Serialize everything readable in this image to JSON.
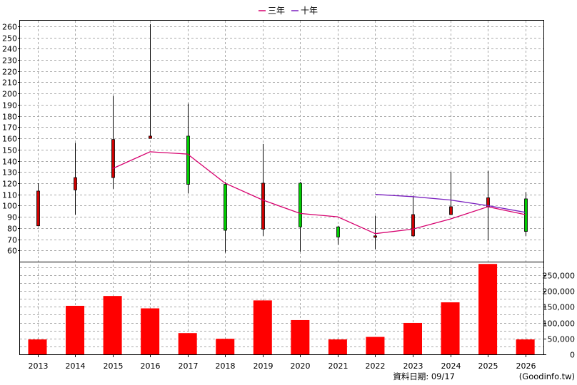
{
  "legend": {
    "items": [
      {
        "label": "三年",
        "color": "#d6006e"
      },
      {
        "label": "十年",
        "color": "#7a1fbf"
      }
    ]
  },
  "footer": {
    "source_label": "資料日期: 09/17",
    "source_site": "(Goodinfo.tw)"
  },
  "chart_data": {
    "type": "candlestick+bar",
    "categories": [
      "2013",
      "2014",
      "2015",
      "2016",
      "2017",
      "2018",
      "2019",
      "2020",
      "2021",
      "2022",
      "2023",
      "2024",
      "2025",
      "2026"
    ],
    "price_axis": {
      "ylim": [
        50,
        265
      ],
      "ticks": [
        "60",
        "70",
        "80",
        "90",
        "100",
        "110",
        "120",
        "130",
        "140",
        "150",
        "160",
        "170",
        "180",
        "190",
        "200",
        "210",
        "220",
        "230",
        "240",
        "250",
        "260"
      ]
    },
    "candles": [
      {
        "year": "2013",
        "open": 82,
        "close": 113,
        "high": 120,
        "low": 82,
        "color": "#cc0000"
      },
      {
        "year": "2014",
        "open": 114,
        "close": 125,
        "high": 156,
        "low": 92,
        "color": "#cc0000"
      },
      {
        "year": "2015",
        "open": 125,
        "close": 159,
        "high": 198,
        "low": 115,
        "color": "#cc0000"
      },
      {
        "year": "2016",
        "open": 160,
        "close": 162,
        "high": 262,
        "low": 160,
        "color": "#cc0000"
      },
      {
        "year": "2017",
        "open": 162,
        "close": 119,
        "high": 191,
        "low": 111,
        "color": "#00cc00"
      },
      {
        "year": "2018",
        "open": 119,
        "close": 78,
        "high": 121,
        "low": 58,
        "color": "#00cc00"
      },
      {
        "year": "2019",
        "open": 79,
        "close": 120,
        "high": 155,
        "low": 73,
        "color": "#cc0000"
      },
      {
        "year": "2020",
        "open": 120,
        "close": 81,
        "high": 121,
        "low": 59,
        "color": "#00cc00"
      },
      {
        "year": "2021",
        "open": 81,
        "close": 72,
        "high": 82,
        "low": 65,
        "color": "#00cc00"
      },
      {
        "year": "2022",
        "open": 72,
        "close": 73,
        "high": 91,
        "low": 61,
        "color": "#cc0000"
      },
      {
        "year": "2023",
        "open": 73,
        "close": 92,
        "high": 109,
        "low": 72,
        "color": "#cc0000"
      },
      {
        "year": "2024",
        "open": 92,
        "close": 99,
        "high": 130,
        "low": 92,
        "color": "#cc0000"
      },
      {
        "year": "2025",
        "open": 99,
        "close": 107,
        "high": 131,
        "low": 69,
        "color": "#cc0000"
      },
      {
        "year": "2026",
        "open": 106,
        "close": 77,
        "high": 112,
        "low": 73,
        "color": "#00cc00"
      }
    ],
    "series": [
      {
        "name": "三年",
        "color": "#d6006e",
        "points": [
          {
            "year": "2015",
            "value": 133
          },
          {
            "year": "2016",
            "value": 148
          },
          {
            "year": "2017",
            "value": 146
          },
          {
            "year": "2018",
            "value": 120
          },
          {
            "year": "2019",
            "value": 105
          },
          {
            "year": "2020",
            "value": 93
          },
          {
            "year": "2021",
            "value": 90
          },
          {
            "year": "2022",
            "value": 75
          },
          {
            "year": "2023",
            "value": 79
          },
          {
            "year": "2024",
            "value": 88
          },
          {
            "year": "2025",
            "value": 99
          },
          {
            "year": "2026",
            "value": 92
          }
        ]
      },
      {
        "name": "十年",
        "color": "#7a1fbf",
        "points": [
          {
            "year": "2022",
            "value": 110
          },
          {
            "year": "2023",
            "value": 108
          },
          {
            "year": "2024",
            "value": 105
          },
          {
            "year": "2025",
            "value": 100
          },
          {
            "year": "2026",
            "value": 94
          }
        ]
      }
    ],
    "volume_axis": {
      "ylim": [
        0,
        290000
      ],
      "ticks": [
        "0",
        "50,000",
        "100,000",
        "150,000",
        "200,000",
        "250,000"
      ]
    },
    "volume": {
      "color": "#ff0000",
      "values": [
        47000,
        153000,
        184000,
        145000,
        67000,
        49000,
        170000,
        108000,
        47000,
        55000,
        99000,
        164000,
        285000,
        47000
      ]
    },
    "grid": true
  }
}
